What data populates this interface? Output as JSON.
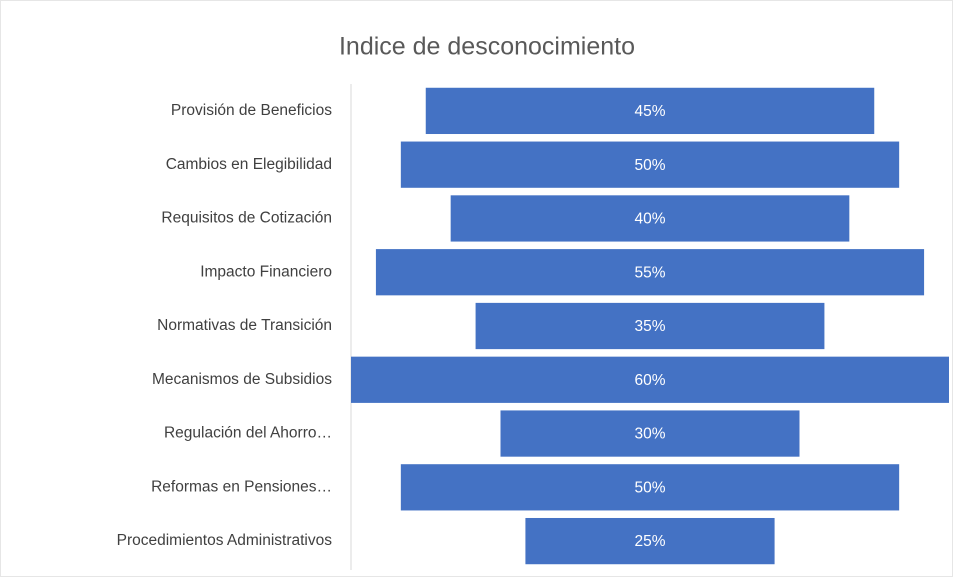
{
  "chart_data": {
    "type": "funnel",
    "title": "Indice de desconocimiento",
    "categories": [
      "Provisión de Beneficios",
      "Cambios en Elegibilidad",
      "Requisitos de Cotización",
      "Impacto Financiero",
      "Normativas de Transición",
      "Mecanismos de Subsidios",
      "Regulación del Ahorro…",
      "Reformas en Pensiones…",
      "Procedimientos Administrativos"
    ],
    "values": [
      45,
      50,
      40,
      55,
      35,
      60,
      30,
      50,
      25
    ],
    "value_labels": [
      "45%",
      "50%",
      "40%",
      "55%",
      "35%",
      "60%",
      "30%",
      "50%",
      "25%"
    ],
    "color": "#4472c4"
  }
}
